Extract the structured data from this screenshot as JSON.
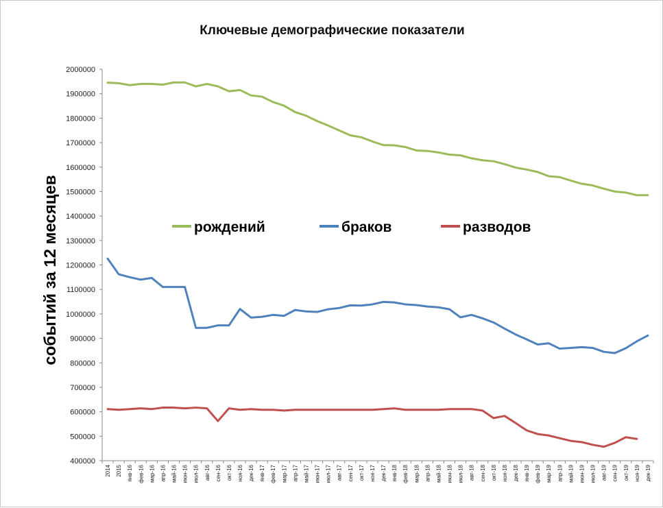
{
  "chart_data": {
    "type": "line",
    "title": "Ключевые демографические показатели",
    "ylabel": "событий за 12  месяцев",
    "xlabel": "",
    "ylim": [
      400000,
      2000000
    ],
    "yticks": [
      400000,
      500000,
      600000,
      700000,
      800000,
      900000,
      1000000,
      1100000,
      1200000,
      1300000,
      1400000,
      1500000,
      1600000,
      1700000,
      1800000,
      1900000,
      2000000
    ],
    "grid": false,
    "legend_position": "middle",
    "categories": [
      "2014",
      "2015",
      "янв-16",
      "фев-16",
      "мар-16",
      "апр-16",
      "май-16",
      "июн-16",
      "июл-16",
      "авг-16",
      "сен-16",
      "окт-16",
      "ноя-16",
      "дек-16",
      "янв-17",
      "фев-17",
      "мар-17",
      "апр-17",
      "май-17",
      "июн-17",
      "июл-17",
      "авг-17",
      "сен-17",
      "окт-17",
      "ноя-17",
      "дек-17",
      "янв-18",
      "фев-18",
      "мар-18",
      "апр-18",
      "май-18",
      "июн-18",
      "июл-18",
      "авг-18",
      "сен-18",
      "окт-18",
      "ноя-18",
      "дек-18",
      "янв-19",
      "фев-19",
      "мар-19",
      "апр-19",
      "май-19",
      "июн-19",
      "июл-19",
      "авг-19",
      "сен-19",
      "окт-19",
      "ноя-19",
      "дек-19"
    ],
    "series": [
      {
        "name": "рождений",
        "color": "#9bbb59",
        "values": [
          1945000,
          1943000,
          1935000,
          1940000,
          1940000,
          1937000,
          1946000,
          1946000,
          1930000,
          1940000,
          1930000,
          1910000,
          1915000,
          1893000,
          1888000,
          1866000,
          1851000,
          1825000,
          1810000,
          1788000,
          1770000,
          1750000,
          1730000,
          1722000,
          1705000,
          1690000,
          1689000,
          1682000,
          1668000,
          1666000,
          1660000,
          1651000,
          1648000,
          1636000,
          1628000,
          1624000,
          1612000,
          1598000,
          1590000,
          1580000,
          1563000,
          1559000,
          1545000,
          1532000,
          1525000,
          1512000,
          1500000,
          1496000,
          1485000,
          1485000
        ]
      },
      {
        "name": "браков",
        "color": "#4f81bd",
        "values": [
          1226000,
          1162000,
          1150000,
          1140000,
          1147000,
          1110000,
          1110000,
          1110000,
          943000,
          943000,
          953000,
          953000,
          1020000,
          985000,
          988000,
          996000,
          992000,
          1016000,
          1010000,
          1008000,
          1019000,
          1024000,
          1035000,
          1034000,
          1039000,
          1049000,
          1047000,
          1039000,
          1036000,
          1030000,
          1027000,
          1019000,
          986000,
          996000,
          982000,
          965000,
          940000,
          916000,
          896000,
          875000,
          880000,
          858000,
          861000,
          864000,
          861000,
          845000,
          840000,
          860000,
          888000,
          912000
        ]
      },
      {
        "name": "разводов",
        "color": "#c0504d",
        "values": [
          611000,
          608000,
          611000,
          614000,
          611000,
          617000,
          617000,
          614000,
          617000,
          614000,
          562000,
          614000,
          608000,
          611000,
          608000,
          608000,
          605000,
          608000,
          608000,
          608000,
          608000,
          608000,
          608000,
          608000,
          608000,
          611000,
          614000,
          608000,
          608000,
          608000,
          608000,
          611000,
          611000,
          611000,
          605000,
          574000,
          583000,
          554000,
          524000,
          509000,
          503000,
          492000,
          481000,
          476000,
          465000,
          457000,
          473000,
          496000,
          489000,
          null
        ]
      }
    ]
  }
}
